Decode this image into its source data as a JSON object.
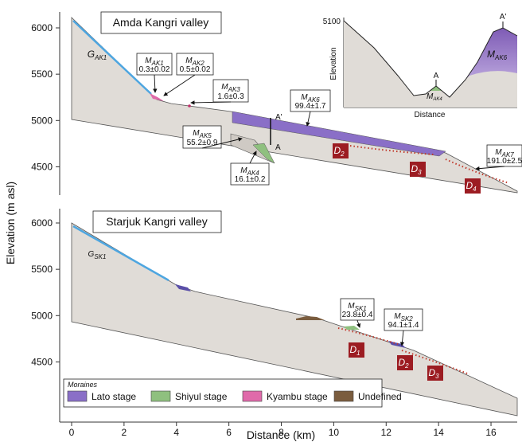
{
  "panels": [
    {
      "title": "Amda Kangri valley",
      "glacier": {
        "symbol": "G",
        "sub": "AK1"
      },
      "labels": [
        {
          "symbol": "M",
          "sub": "AK1",
          "value": "0.3±0.02"
        },
        {
          "symbol": "M",
          "sub": "AK2",
          "value": "0.5±0.02"
        },
        {
          "symbol": "M",
          "sub": "AK3",
          "value": "1.6±0.3"
        },
        {
          "symbol": "M",
          "sub": "AK6",
          "value": "99.4±1.7"
        },
        {
          "symbol": "M",
          "sub": "AK5",
          "value": "55.2±0.9"
        },
        {
          "symbol": "M",
          "sub": "AK4",
          "value": "16.1±0.2"
        },
        {
          "symbol": "M",
          "sub": "AK7",
          "value": "191.0±2.5"
        }
      ],
      "depressions": [
        {
          "symbol": "D",
          "sub": "2"
        },
        {
          "symbol": "D",
          "sub": "3"
        },
        {
          "symbol": "D",
          "sub": "4"
        }
      ],
      "section_marks": [
        "A'",
        "A"
      ]
    },
    {
      "title": "Starjuk Kangri valley",
      "glacier": {
        "symbol": "G",
        "sub": "SK1"
      },
      "labels": [
        {
          "symbol": "M",
          "sub": "SK1",
          "value": "23.8±0.4"
        },
        {
          "symbol": "M",
          "sub": "SK2",
          "value": "94.1±1.4"
        }
      ],
      "depressions": [
        {
          "symbol": "D",
          "sub": "1"
        },
        {
          "symbol": "D",
          "sub": "2"
        },
        {
          "symbol": "D",
          "sub": "3"
        }
      ]
    }
  ],
  "inset": {
    "ytick": "5100",
    "ylabel": "Elevation",
    "xlabel": "Distance",
    "marks": [
      "A'",
      "A"
    ],
    "labels": [
      {
        "symbol": "M",
        "sub": "AK6"
      },
      {
        "symbol": "M",
        "sub": "AK4"
      }
    ]
  },
  "axes": {
    "xlabel": "Distance (km)",
    "ylabel": "Elevation (m asl)",
    "xticks": [
      0,
      2,
      4,
      6,
      8,
      10,
      12,
      14,
      16
    ],
    "yticks": [
      4500,
      5000,
      5500,
      6000
    ]
  },
  "legend": {
    "title": "Moraines",
    "items": [
      "Lato stage",
      "Shiyul stage",
      "Kyambu stage",
      "Undefined"
    ]
  }
}
